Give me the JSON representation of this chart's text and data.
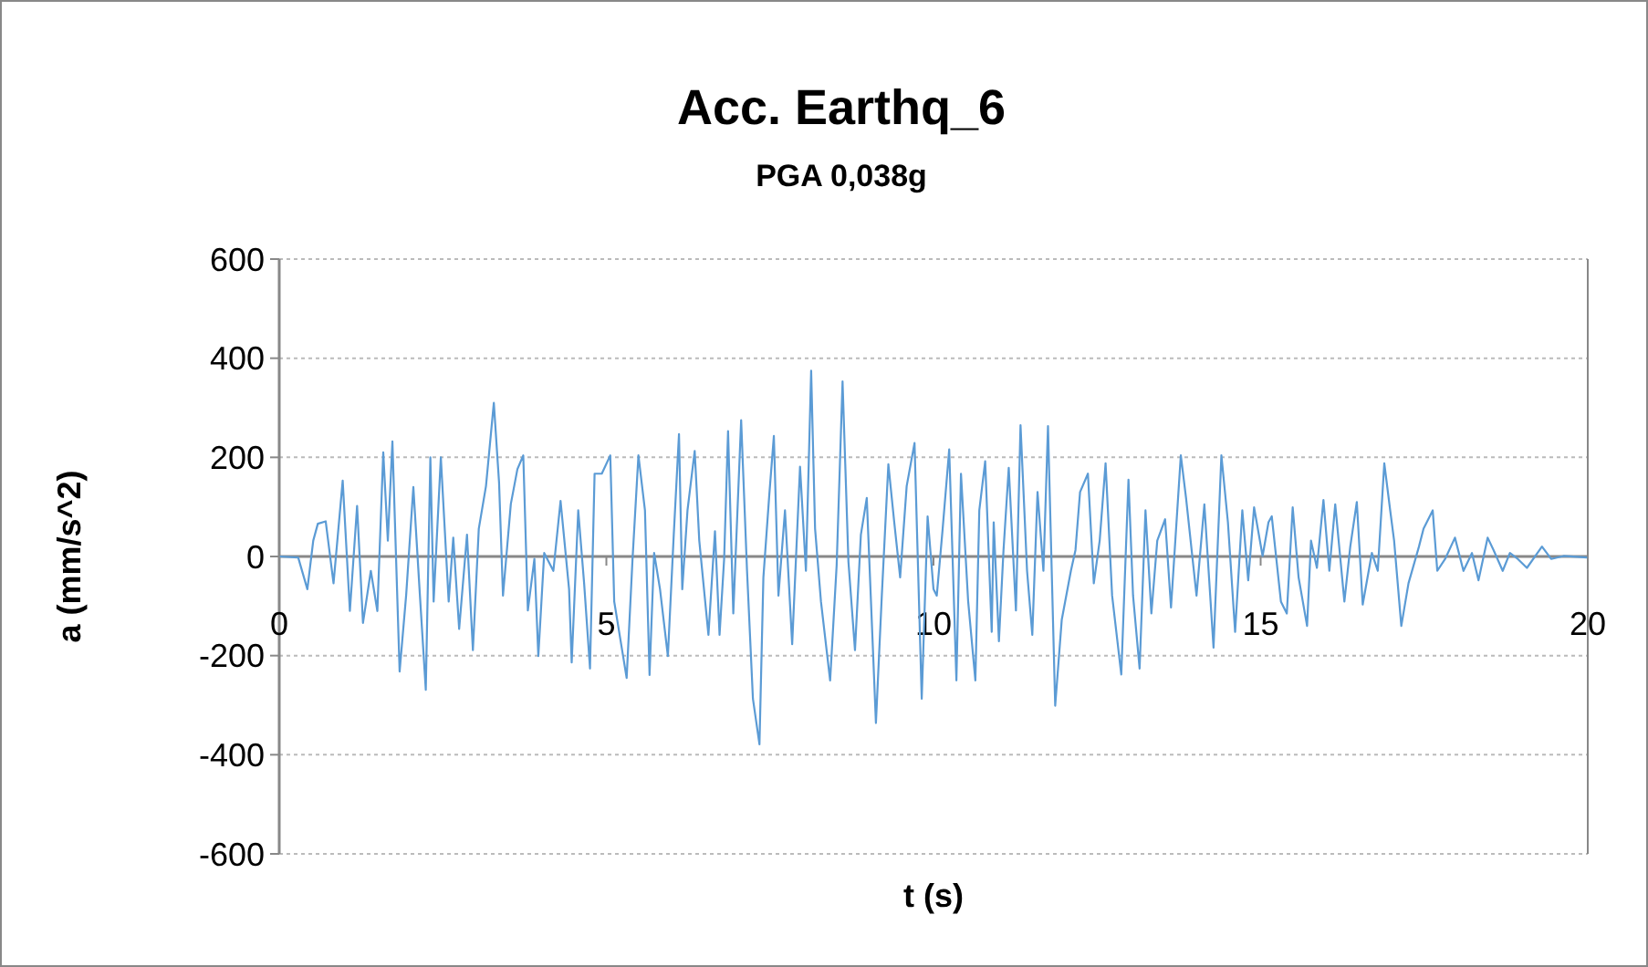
{
  "chart_data": {
    "type": "line",
    "title": "Acc. Earthq_6",
    "subtitle": "PGA 0,038g",
    "xlabel": "t (s)",
    "ylabel": "a (mm/s^2)",
    "xlim": [
      0,
      20
    ],
    "xticks": [
      0,
      5,
      10,
      15,
      20
    ],
    "ylim": [
      -600,
      600
    ],
    "yticks": [
      -600,
      -400,
      -200,
      0,
      200,
      400,
      600
    ],
    "grid": "y",
    "marker": "none",
    "line_style": "solid",
    "series": [
      {
        "color": "#5b9bd5",
        "x": [
          0.01,
          0.29,
          0.43,
          0.52,
          0.59,
          0.71,
          0.83,
          0.97,
          1.08,
          1.19,
          1.28,
          1.4,
          1.5,
          1.59,
          1.66,
          1.73,
          1.84,
          1.94,
          2.05,
          2.15,
          2.24,
          2.31,
          2.36,
          2.47,
          2.59,
          2.66,
          2.75,
          2.87,
          2.96,
          3.05,
          3.16,
          3.28,
          3.36,
          3.42,
          3.54,
          3.64,
          3.73,
          3.8,
          3.9,
          3.96,
          4.05,
          4.19,
          4.3,
          4.43,
          4.47,
          4.57,
          4.66,
          4.75,
          4.82,
          4.93,
          5.06,
          5.12,
          5.31,
          5.4,
          5.49,
          5.59,
          5.66,
          5.73,
          5.82,
          5.94,
          6.03,
          6.11,
          6.16,
          6.24,
          6.35,
          6.42,
          6.56,
          6.66,
          6.73,
          6.8,
          6.86,
          6.94,
          7.06,
          7.15,
          7.24,
          7.34,
          7.4,
          7.49,
          7.56,
          7.63,
          7.73,
          7.84,
          7.96,
          8.05,
          8.13,
          8.19,
          8.28,
          8.42,
          8.52,
          8.61,
          8.7,
          8.8,
          8.89,
          8.98,
          9.12,
          9.21,
          9.31,
          9.4,
          9.49,
          9.59,
          9.71,
          9.82,
          9.91,
          10.0,
          10.05,
          10.14,
          10.24,
          10.35,
          10.42,
          10.53,
          10.64,
          10.7,
          10.79,
          10.89,
          10.92,
          11.0,
          11.07,
          11.15,
          11.26,
          11.33,
          11.43,
          11.51,
          11.59,
          11.68,
          11.75,
          11.86,
          11.96,
          12.1,
          12.17,
          12.24,
          12.36,
          12.45,
          12.54,
          12.63,
          12.73,
          12.87,
          12.98,
          13.05,
          13.15,
          13.24,
          13.33,
          13.42,
          13.54,
          13.63,
          13.78,
          13.86,
          14.02,
          14.14,
          14.28,
          14.4,
          14.5,
          14.61,
          14.72,
          14.81,
          14.9,
          15.03,
          15.12,
          15.17,
          15.31,
          15.4,
          15.49,
          15.58,
          15.71,
          15.77,
          15.86,
          15.96,
          16.05,
          16.14,
          16.28,
          16.37,
          16.47,
          16.56,
          16.7,
          16.79,
          16.89,
          16.98,
          17.04,
          17.15,
          17.26,
          17.42,
          17.49,
          17.63,
          17.7,
          17.82,
          17.97,
          18.1,
          18.23,
          18.33,
          18.47,
          18.56,
          18.7,
          18.81,
          18.93,
          19.07,
          19.3,
          19.44,
          19.63,
          19.99
        ],
        "values": [
          0,
          -2,
          -66,
          32,
          66,
          71,
          -54,
          153,
          -110,
          102,
          -134,
          -29,
          -110,
          210,
          32,
          232,
          -232,
          -78,
          140,
          -78,
          -269,
          200,
          -91,
          200,
          -91,
          38,
          -146,
          44,
          -189,
          56,
          142,
          310,
          149,
          -79,
          106,
          176,
          204,
          -109,
          -5,
          -201,
          7,
          -29,
          112,
          -66,
          -214,
          93,
          -54,
          -226,
          167,
          167,
          204,
          -91,
          -245,
          -5,
          204,
          93,
          -239,
          7,
          -66,
          -201,
          44,
          247,
          -66,
          93,
          213,
          32,
          -158,
          51,
          -158,
          -5,
          253,
          -115,
          275,
          -29,
          -287,
          -379,
          -42,
          124,
          243,
          -79,
          93,
          -177,
          181,
          -29,
          375,
          56,
          -91,
          -250,
          -17,
          353,
          -11,
          -189,
          44,
          118,
          -336,
          -79,
          186,
          69,
          -42,
          142,
          229,
          -287,
          81,
          -66,
          -79,
          56,
          216,
          -250,
          167,
          -91,
          -250,
          93,
          192,
          -152,
          69,
          -171,
          13,
          179,
          -109,
          265,
          -29,
          -158,
          130,
          -29,
          263,
          -301,
          -128,
          -29,
          13,
          130,
          167,
          -54,
          32,
          188,
          -79,
          -238,
          155,
          -79,
          -226,
          93,
          -115,
          32,
          75,
          -103,
          204,
          118,
          -79,
          105,
          -184,
          204,
          69,
          -152,
          93,
          -48,
          99,
          1,
          69,
          81,
          -91,
          -115,
          99,
          -42,
          -140,
          32,
          -23,
          114,
          -29,
          105,
          -91,
          20,
          110,
          -97,
          7,
          -29,
          188,
          93,
          32,
          -140,
          -54,
          20,
          56,
          93,
          -29,
          -5,
          38,
          -29,
          7,
          -48,
          38,
          13,
          -29,
          7,
          -5,
          -23,
          20,
          -5,
          1,
          -2
        ]
      }
    ]
  }
}
